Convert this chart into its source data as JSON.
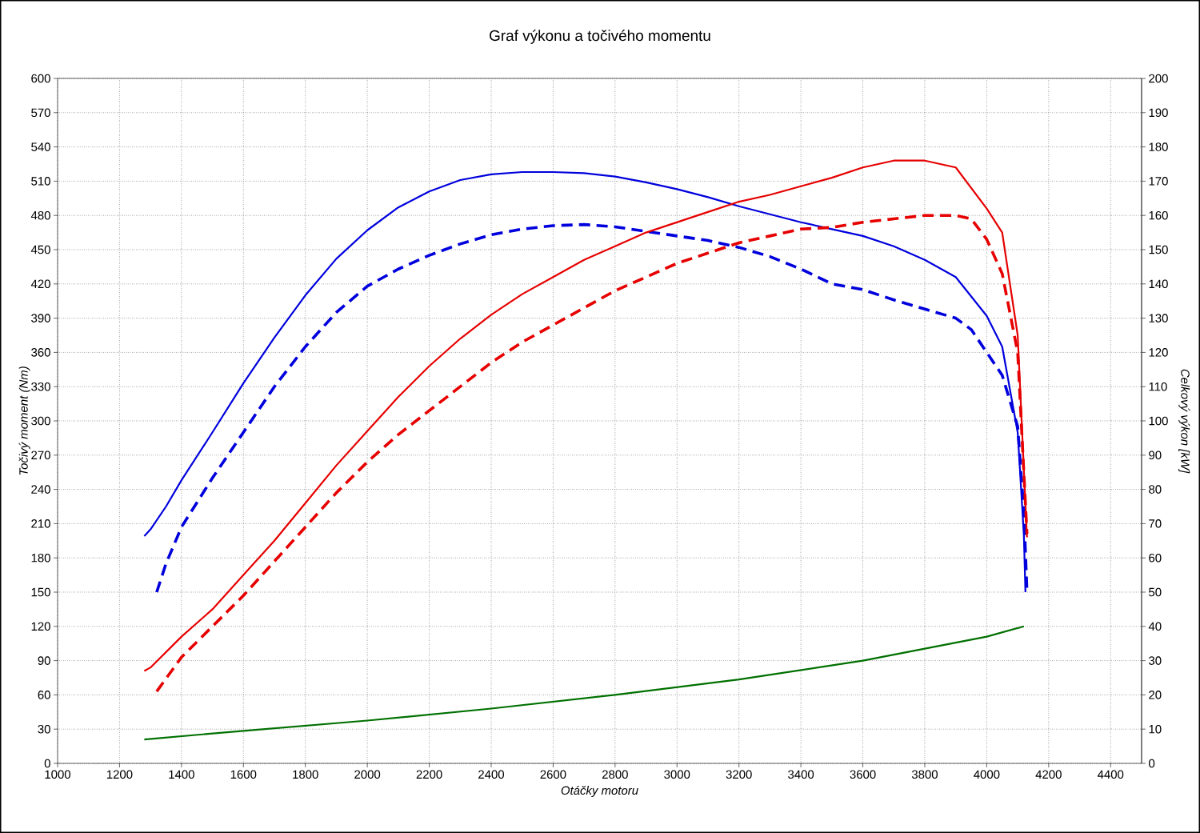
{
  "chart_data": {
    "type": "line",
    "title": "Graf výkonu a točivého momentu",
    "xlabel": "Otáčky motoru",
    "ylabel": "Točivý moment (Nm)",
    "y2label": "Celkový výkon [kW]",
    "xlim": [
      1000,
      4500
    ],
    "xticks": [
      1000,
      1200,
      1400,
      1600,
      1800,
      2000,
      2200,
      2400,
      2600,
      2800,
      3000,
      3200,
      3400,
      3600,
      3800,
      4000,
      4200,
      4400
    ],
    "ylim": [
      0,
      600
    ],
    "yticks": [
      0,
      30,
      60,
      90,
      120,
      150,
      180,
      210,
      240,
      270,
      300,
      330,
      360,
      390,
      420,
      450,
      480,
      510,
      540,
      570,
      600
    ],
    "y2lim": [
      0,
      200
    ],
    "y2ticks": [
      0,
      10,
      20,
      30,
      40,
      50,
      60,
      70,
      80,
      90,
      100,
      110,
      120,
      130,
      140,
      150,
      160,
      170,
      180,
      190,
      200
    ],
    "grid": true,
    "marker": "none",
    "series": [
      {
        "color": "#0000dd",
        "line_style": "solid",
        "x": [
          1280,
          1300,
          1350,
          1400,
          1500,
          1600,
          1700,
          1800,
          1900,
          2000,
          2100,
          2200,
          2300,
          2400,
          2500,
          2600,
          2700,
          2800,
          2900,
          3000,
          3100,
          3200,
          3300,
          3400,
          3500,
          3600,
          3700,
          3800,
          3900,
          4000,
          4050,
          4100,
          4120,
          4125
        ],
        "values": [
          199,
          205,
          225,
          248,
          290,
          333,
          373,
          410,
          442,
          467,
          487,
          501,
          511,
          516,
          518,
          518,
          517,
          514,
          509,
          503,
          496,
          488,
          481,
          474,
          468,
          462,
          453,
          441,
          426,
          392,
          365,
          290,
          200,
          150
        ]
      },
      {
        "color": "#0000dd",
        "line_style": "dashed",
        "x": [
          1320,
          1350,
          1400,
          1500,
          1600,
          1700,
          1800,
          1900,
          2000,
          2100,
          2200,
          2300,
          2400,
          2500,
          2600,
          2700,
          2800,
          2900,
          3000,
          3100,
          3200,
          3300,
          3400,
          3500,
          3600,
          3700,
          3800,
          3900,
          3950,
          4000,
          4050,
          4100,
          4120,
          4130
        ],
        "values": [
          150,
          175,
          207,
          250,
          290,
          330,
          365,
          395,
          418,
          433,
          445,
          455,
          463,
          468,
          471,
          472,
          470,
          466,
          462,
          458,
          452,
          444,
          433,
          420,
          415,
          406,
          398,
          390,
          380,
          360,
          340,
          295,
          220,
          150
        ]
      },
      {
        "color": "#e60000",
        "line_style": "solid",
        "axis": "y2",
        "x": [
          1280,
          1300,
          1400,
          1500,
          1600,
          1700,
          1800,
          1900,
          2000,
          2100,
          2200,
          2300,
          2400,
          2500,
          2600,
          2700,
          2800,
          2900,
          3000,
          3100,
          3200,
          3300,
          3400,
          3500,
          3600,
          3700,
          3800,
          3900,
          4000,
          4050,
          4100,
          4130
        ],
        "values": [
          27,
          28,
          37,
          45,
          55,
          65,
          76,
          87,
          97,
          107,
          116,
          124,
          131,
          137,
          142,
          147,
          151,
          155,
          158,
          161,
          164,
          166,
          168.5,
          171,
          174,
          176,
          176,
          174,
          162,
          155,
          125,
          66
        ]
      },
      {
        "color": "#e60000",
        "line_style": "dashed",
        "axis": "y2",
        "x": [
          1320,
          1400,
          1500,
          1600,
          1700,
          1800,
          1900,
          2000,
          2100,
          2200,
          2300,
          2400,
          2500,
          2600,
          2700,
          2800,
          2900,
          3000,
          3100,
          3200,
          3300,
          3400,
          3500,
          3600,
          3700,
          3800,
          3900,
          3950,
          4000,
          4050,
          4100,
          4130
        ],
        "values": [
          21,
          31,
          40,
          49,
          59,
          69,
          79,
          88,
          96,
          103,
          110,
          117,
          123,
          128,
          133,
          138,
          142,
          146,
          149,
          152,
          154,
          156,
          156.5,
          158,
          159,
          160,
          160,
          159,
          153,
          143,
          120,
          67
        ]
      },
      {
        "color": "#007000",
        "line_style": "solid",
        "axis": "y2",
        "x": [
          1280,
          1600,
          2000,
          2400,
          2800,
          3200,
          3600,
          4000,
          4120
        ],
        "values": [
          7,
          9.5,
          12.5,
          16,
          20,
          24.5,
          30,
          37,
          40
        ]
      }
    ]
  }
}
